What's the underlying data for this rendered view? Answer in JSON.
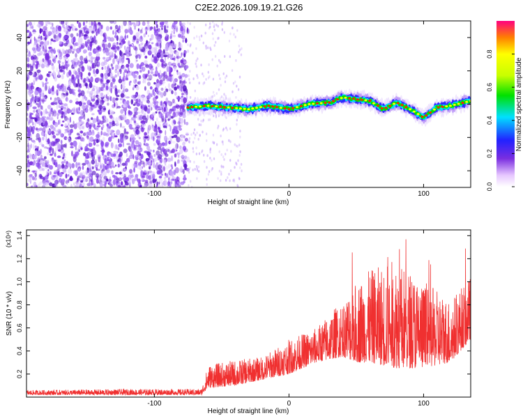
{
  "title": "C2E2.2026.109.19.21.G26",
  "chart_data": [
    {
      "type": "heatmap",
      "xlabel": "Height of straight line (km)",
      "ylabel": "Frequency (Hz)",
      "xlim": [
        -195,
        135
      ],
      "ylim": [
        -50,
        50
      ],
      "xticks": [
        -100,
        0,
        100
      ],
      "yticks": [
        -40,
        -20,
        0,
        20,
        40
      ],
      "grid": false,
      "colorbar": {
        "label": "Normalized spectral amplitude",
        "range": [
          0,
          1
        ],
        "ticks": [
          0.0,
          0.2,
          0.4,
          0.6,
          0.8
        ]
      },
      "noise_region_end_x": -75,
      "signal_track": {
        "x": [
          -75,
          -60,
          -45,
          -30,
          -15,
          0,
          15,
          30,
          40,
          50,
          60,
          70,
          80,
          90,
          100,
          110,
          120,
          135
        ],
        "y": [
          -2,
          -1,
          -2,
          -3,
          -1,
          -3,
          0,
          1,
          4,
          3,
          2,
          -3,
          1,
          -3,
          -8,
          -2,
          -1,
          2
        ]
      }
    },
    {
      "type": "line",
      "xlabel": "Height of straight line (km)",
      "ylabel": "SNR (10 * v/v)",
      "y_multiplier_label": "(x10⁴)",
      "xlim": [
        -195,
        135
      ],
      "ylim": [
        0,
        1.45
      ],
      "xticks": [
        -100,
        0,
        100
      ],
      "yticks": [
        0.2,
        0.4,
        0.6,
        0.8,
        1.0,
        1.2,
        1.4
      ],
      "grid": false,
      "color": "#f03030",
      "envelope": {
        "x": [
          -195,
          -120,
          -65,
          -60,
          -40,
          -20,
          0,
          20,
          40,
          50,
          60,
          80,
          100,
          120,
          135
        ],
        "low": [
          0.02,
          0.02,
          0.02,
          0.08,
          0.1,
          0.15,
          0.2,
          0.3,
          0.35,
          0.3,
          0.3,
          0.25,
          0.25,
          0.3,
          0.5
        ],
        "high": [
          0.06,
          0.07,
          0.07,
          0.28,
          0.32,
          0.35,
          0.5,
          0.6,
          0.85,
          1.0,
          1.1,
          1.2,
          1.0,
          0.85,
          1.05
        ]
      }
    }
  ],
  "colors": {
    "noise": "#7a2ee0",
    "line": "#f03030",
    "ink": "#000000"
  }
}
